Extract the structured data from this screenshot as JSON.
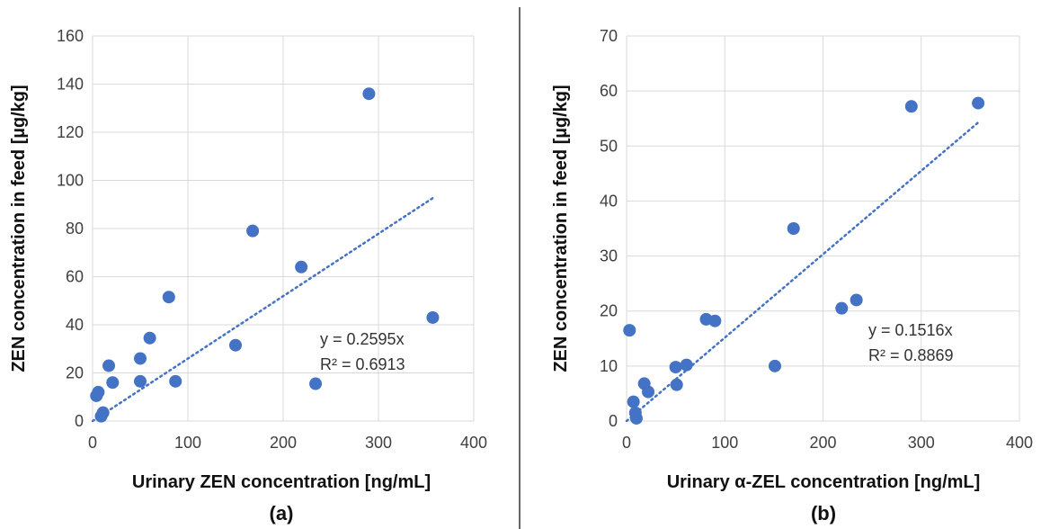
{
  "chart_data": [
    {
      "type": "scatter",
      "panel_label": "(a)",
      "xlabel": "Urinary ZEN concentration [ng/mL]",
      "ylabel": "ZEN concentration in feed [µg/kg]",
      "xlim": [
        0,
        400
      ],
      "ylim": [
        0,
        160
      ],
      "x_ticks": [
        0,
        100,
        200,
        300,
        400
      ],
      "y_ticks": [
        0,
        20,
        40,
        60,
        80,
        100,
        120,
        140,
        160
      ],
      "grid": true,
      "marker_color": "#4472C4",
      "trendline": {
        "slope": 0.2595,
        "x_range": [
          0,
          357
        ],
        "style": "dotted",
        "equation": "y = 0.2595x",
        "r2": "R² = 0.6913"
      },
      "points": [
        {
          "x": 4,
          "y": 10.5
        },
        {
          "x": 6,
          "y": 12
        },
        {
          "x": 9,
          "y": 2
        },
        {
          "x": 11,
          "y": 3.5
        },
        {
          "x": 17,
          "y": 23
        },
        {
          "x": 21,
          "y": 16
        },
        {
          "x": 50,
          "y": 26
        },
        {
          "x": 50,
          "y": 16.5
        },
        {
          "x": 60,
          "y": 34.5
        },
        {
          "x": 80,
          "y": 51.5
        },
        {
          "x": 87,
          "y": 16.5
        },
        {
          "x": 150,
          "y": 31.5
        },
        {
          "x": 168,
          "y": 79
        },
        {
          "x": 219,
          "y": 64
        },
        {
          "x": 234,
          "y": 15.5
        },
        {
          "x": 290,
          "y": 136
        },
        {
          "x": 357,
          "y": 43
        }
      ]
    },
    {
      "type": "scatter",
      "panel_label": "(b)",
      "xlabel": "Urinary α-ZEL concentration [ng/mL]",
      "ylabel": "ZEN concentration in feed [µg/kg]",
      "xlim": [
        0,
        400
      ],
      "ylim": [
        0,
        70
      ],
      "x_ticks": [
        0,
        100,
        200,
        300,
        400
      ],
      "y_ticks": [
        0,
        10,
        20,
        30,
        40,
        50,
        60,
        70
      ],
      "grid": true,
      "marker_color": "#4472C4",
      "trendline": {
        "slope": 0.1516,
        "x_range": [
          0,
          358
        ],
        "style": "dotted",
        "equation": "y = 0.1516x",
        "r2": "R² = 0.8869"
      },
      "points": [
        {
          "x": 3,
          "y": 16.5
        },
        {
          "x": 7,
          "y": 3.5
        },
        {
          "x": 9,
          "y": 1.5
        },
        {
          "x": 10,
          "y": 0.5
        },
        {
          "x": 18,
          "y": 6.8
        },
        {
          "x": 22,
          "y": 5.3
        },
        {
          "x": 50,
          "y": 9.8
        },
        {
          "x": 51,
          "y": 6.6
        },
        {
          "x": 61,
          "y": 10.2
        },
        {
          "x": 81,
          "y": 18.5
        },
        {
          "x": 90,
          "y": 18.2
        },
        {
          "x": 151,
          "y": 10
        },
        {
          "x": 170,
          "y": 35
        },
        {
          "x": 219,
          "y": 20.5
        },
        {
          "x": 234,
          "y": 22
        },
        {
          "x": 290,
          "y": 57.2
        },
        {
          "x": 358,
          "y": 57.8
        }
      ]
    }
  ]
}
